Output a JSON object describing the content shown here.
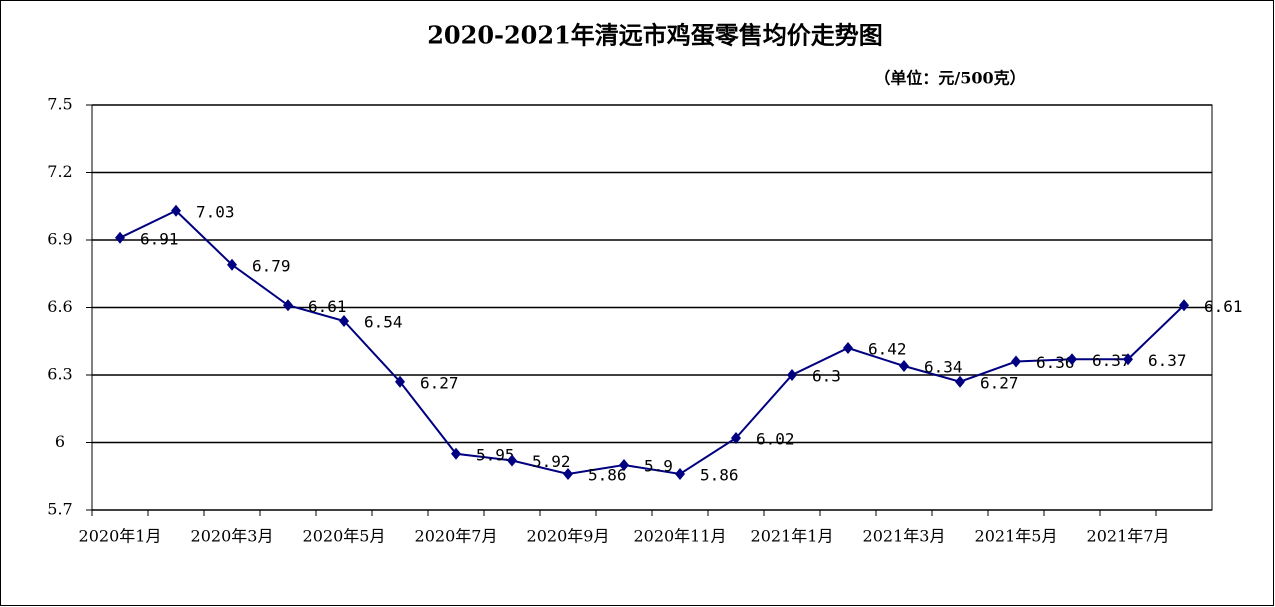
{
  "chart_data": {
    "type": "line",
    "title": "2020-2021年清远市鸡蛋零售均价走势图",
    "subtitle": "（单位：元/500克）",
    "categories": [
      "2020年1月",
      null,
      "2020年3月",
      null,
      "2020年5月",
      null,
      "2020年7月",
      null,
      "2020年9月",
      null,
      "2020年11月",
      null,
      "2021年1月",
      null,
      "2021年3月",
      null,
      "2021年5月",
      null,
      "2021年7月",
      null
    ],
    "series": [
      {
        "name": "鸡蛋零售均价",
        "color": "#000080",
        "values": [
          6.91,
          7.03,
          6.79,
          6.61,
          6.54,
          6.27,
          5.95,
          5.92,
          5.86,
          5.9,
          5.86,
          6.02,
          6.3,
          6.42,
          6.34,
          6.27,
          6.36,
          6.37,
          6.37,
          6.61
        ]
      }
    ],
    "ylim": [
      5.7,
      7.5
    ],
    "yticks": [
      5.7,
      6,
      6.3,
      6.6,
      6.9,
      7.2,
      7.5
    ],
    "grid": true
  }
}
